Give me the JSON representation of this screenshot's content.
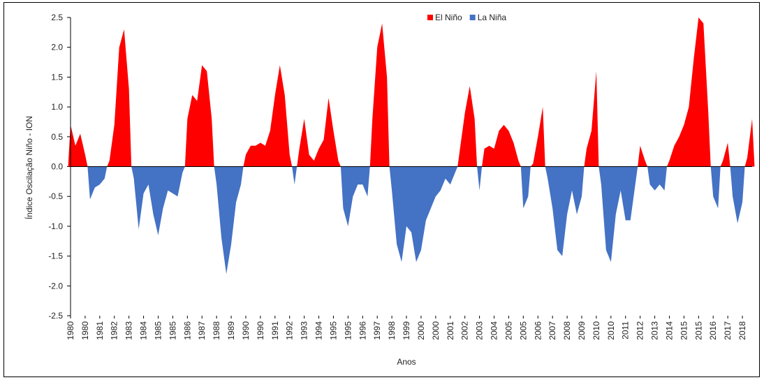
{
  "chart_data": {
    "type": "area",
    "x_label": "Anos",
    "y_label": "Índice Oscilação Niño - ION",
    "legend": "top",
    "grid": false,
    "categories": [
      "1980",
      null,
      null,
      "1980",
      null,
      null,
      "1981",
      null,
      null,
      "1982",
      null,
      null,
      "1983",
      null,
      null,
      "1984",
      null,
      null,
      "1985",
      null,
      null,
      "1985",
      null,
      null,
      "1986",
      null,
      null,
      "1987",
      null,
      null,
      "1988",
      null,
      null,
      "1989",
      null,
      null,
      "1990",
      null,
      null,
      "1990",
      null,
      null,
      "1991",
      null,
      null,
      "1992",
      null,
      null,
      "1993",
      null,
      null,
      "1994",
      null,
      null,
      "1995",
      null,
      null,
      "1995",
      null,
      null,
      "1996",
      null,
      null,
      "1997",
      null,
      null,
      "1998",
      null,
      null,
      "1999",
      null,
      null,
      "2000",
      null,
      null,
      "2000",
      null,
      null,
      "2001",
      null,
      null,
      "2002",
      null,
      null,
      "2003",
      null,
      null,
      "2004",
      null,
      null,
      "2005",
      null,
      null,
      "2005",
      null,
      null,
      "2006",
      null,
      null,
      "2007",
      null,
      null,
      "2008",
      null,
      null,
      "2009",
      null,
      null,
      "2010",
      null,
      null,
      "2010",
      null,
      null,
      "2011",
      null,
      null,
      "2012",
      null,
      null,
      "2013",
      null,
      null,
      "2014",
      null,
      null,
      "2015",
      null,
      null,
      "2015",
      null,
      null,
      "2016",
      null,
      null,
      "2017",
      null,
      null,
      "2018",
      null,
      null
    ],
    "series": [
      {
        "name": "El Niño",
        "color": "#ff0000",
        "values": [
          0.7,
          0.35,
          0.55,
          0.2,
          null,
          null,
          null,
          null,
          0.1,
          0.7,
          2.0,
          2.3,
          1.3,
          null,
          null,
          null,
          null,
          null,
          null,
          null,
          null,
          null,
          null,
          null,
          0.8,
          1.2,
          1.1,
          1.7,
          1.6,
          0.8,
          null,
          null,
          null,
          null,
          null,
          null,
          0.2,
          0.35,
          0.35,
          0.4,
          0.35,
          0.6,
          1.2,
          1.7,
          1.2,
          0.2,
          null,
          0.3,
          0.8,
          0.2,
          0.1,
          0.3,
          0.45,
          1.15,
          0.6,
          0.1,
          null,
          null,
          null,
          null,
          null,
          null,
          0.8,
          2.0,
          2.4,
          1.5,
          null,
          null,
          null,
          null,
          null,
          null,
          null,
          null,
          null,
          null,
          null,
          null,
          null,
          null,
          0.3,
          0.9,
          1.35,
          0.8,
          null,
          0.3,
          0.35,
          0.3,
          0.6,
          0.7,
          0.6,
          0.4,
          0.1,
          null,
          null,
          0.05,
          0.5,
          1.0,
          null,
          null,
          null,
          null,
          null,
          null,
          null,
          null,
          0.3,
          0.6,
          1.6,
          null,
          null,
          null,
          null,
          null,
          null,
          null,
          null,
          0.35,
          0.1,
          null,
          null,
          null,
          null,
          0.1,
          0.35,
          0.5,
          0.7,
          1.0,
          1.8,
          2.5,
          2.4,
          0.9,
          null,
          null,
          0.1,
          0.4,
          null,
          null,
          null,
          0.15,
          0.8
        ]
      },
      {
        "name": "La Niña",
        "color": "#4472c4",
        "values": [
          null,
          null,
          null,
          null,
          -0.55,
          -0.35,
          -0.3,
          -0.2,
          null,
          null,
          null,
          null,
          null,
          -0.2,
          -1.05,
          -0.45,
          -0.3,
          -0.8,
          -1.15,
          -0.7,
          -0.4,
          -0.45,
          -0.5,
          -0.1,
          null,
          null,
          null,
          null,
          null,
          null,
          -0.3,
          -1.2,
          -1.8,
          -1.3,
          -0.6,
          -0.3,
          null,
          null,
          null,
          null,
          null,
          null,
          null,
          null,
          null,
          null,
          -0.3,
          null,
          null,
          null,
          null,
          null,
          null,
          null,
          null,
          null,
          -0.7,
          -1.0,
          -0.5,
          -0.3,
          -0.3,
          -0.5,
          null,
          null,
          null,
          null,
          -0.4,
          -1.3,
          -1.6,
          -1.0,
          -1.1,
          -1.6,
          -1.4,
          -0.9,
          -0.7,
          -0.5,
          -0.4,
          -0.2,
          -0.3,
          -0.1,
          null,
          null,
          null,
          null,
          -0.4,
          null,
          null,
          null,
          null,
          null,
          null,
          null,
          null,
          -0.7,
          -0.5,
          null,
          null,
          null,
          -0.2,
          -0.7,
          -1.4,
          -1.5,
          -0.8,
          -0.4,
          -0.8,
          -0.5,
          null,
          null,
          null,
          -0.3,
          -1.4,
          -1.6,
          -0.8,
          -0.4,
          -0.9,
          -0.9,
          -0.3,
          null,
          null,
          -0.3,
          -0.4,
          -0.3,
          -0.4,
          null,
          null,
          null,
          null,
          null,
          null,
          null,
          null,
          null,
          -0.5,
          -0.7,
          null,
          null,
          -0.5,
          -0.95,
          -0.6,
          null,
          null
        ]
      }
    ],
    "ylim": [
      -2.5,
      2.5
    ],
    "yticks": [
      -2.5,
      {
        "value": -2,
        "label": "-2.0"
      },
      {
        "value": -1.5,
        "label": "-1.5"
      },
      {
        "value": -1,
        "label": "-1.0"
      },
      -0.5,
      {
        "value": 0,
        "label": "0.0"
      },
      0.5,
      {
        "value": 1,
        "label": "1.0"
      },
      1.5,
      {
        "value": 2,
        "label": "2.0"
      },
      2.5
    ]
  }
}
